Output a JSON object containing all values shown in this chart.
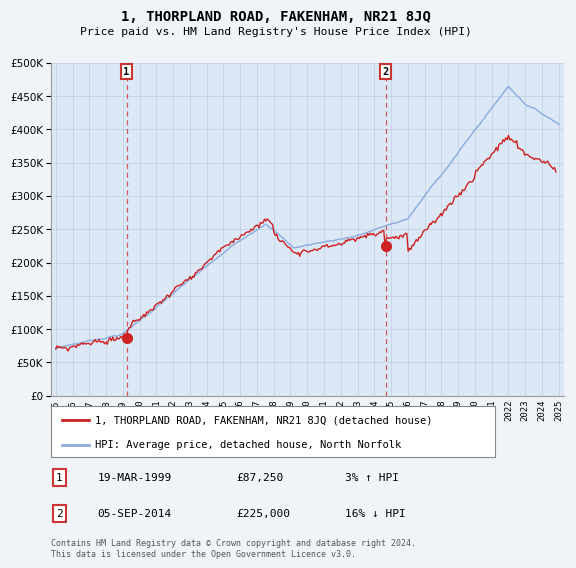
{
  "title": "1, THORPLAND ROAD, FAKENHAM, NR21 8JQ",
  "subtitle": "Price paid vs. HM Land Registry's House Price Index (HPI)",
  "ylim": [
    0,
    500000
  ],
  "yticks": [
    0,
    50000,
    100000,
    150000,
    200000,
    250000,
    300000,
    350000,
    400000,
    450000,
    500000
  ],
  "xlim_start": 1994.7,
  "xlim_end": 2025.3,
  "xtick_years": [
    1995,
    1996,
    1997,
    1998,
    1999,
    2000,
    2001,
    2002,
    2003,
    2004,
    2005,
    2006,
    2007,
    2008,
    2009,
    2010,
    2011,
    2012,
    2013,
    2014,
    2015,
    2016,
    2017,
    2018,
    2019,
    2020,
    2021,
    2022,
    2023,
    2024,
    2025
  ],
  "hpi_color": "#88aadd",
  "price_color": "#cc2222",
  "marker1_year": 1999.22,
  "marker1_price": 87250,
  "marker2_year": 2014.68,
  "marker2_price": 225000,
  "dashed_line_color": "#cc3333",
  "legend_house": "1, THORPLAND ROAD, FAKENHAM, NR21 8JQ (detached house)",
  "legend_hpi": "HPI: Average price, detached house, North Norfolk",
  "annotation1_date": "19-MAR-1999",
  "annotation1_price": "£87,250",
  "annotation1_pct": "3% ↑ HPI",
  "annotation2_date": "05-SEP-2014",
  "annotation2_price": "£225,000",
  "annotation2_pct": "16% ↓ HPI",
  "footer": "Contains HM Land Registry data © Crown copyright and database right 2024.\nThis data is licensed under the Open Government Licence v3.0.",
  "bg_color": "#f0f4f8",
  "plot_bg_color": "#dce8f5",
  "grid_color": "#b0c4d8"
}
